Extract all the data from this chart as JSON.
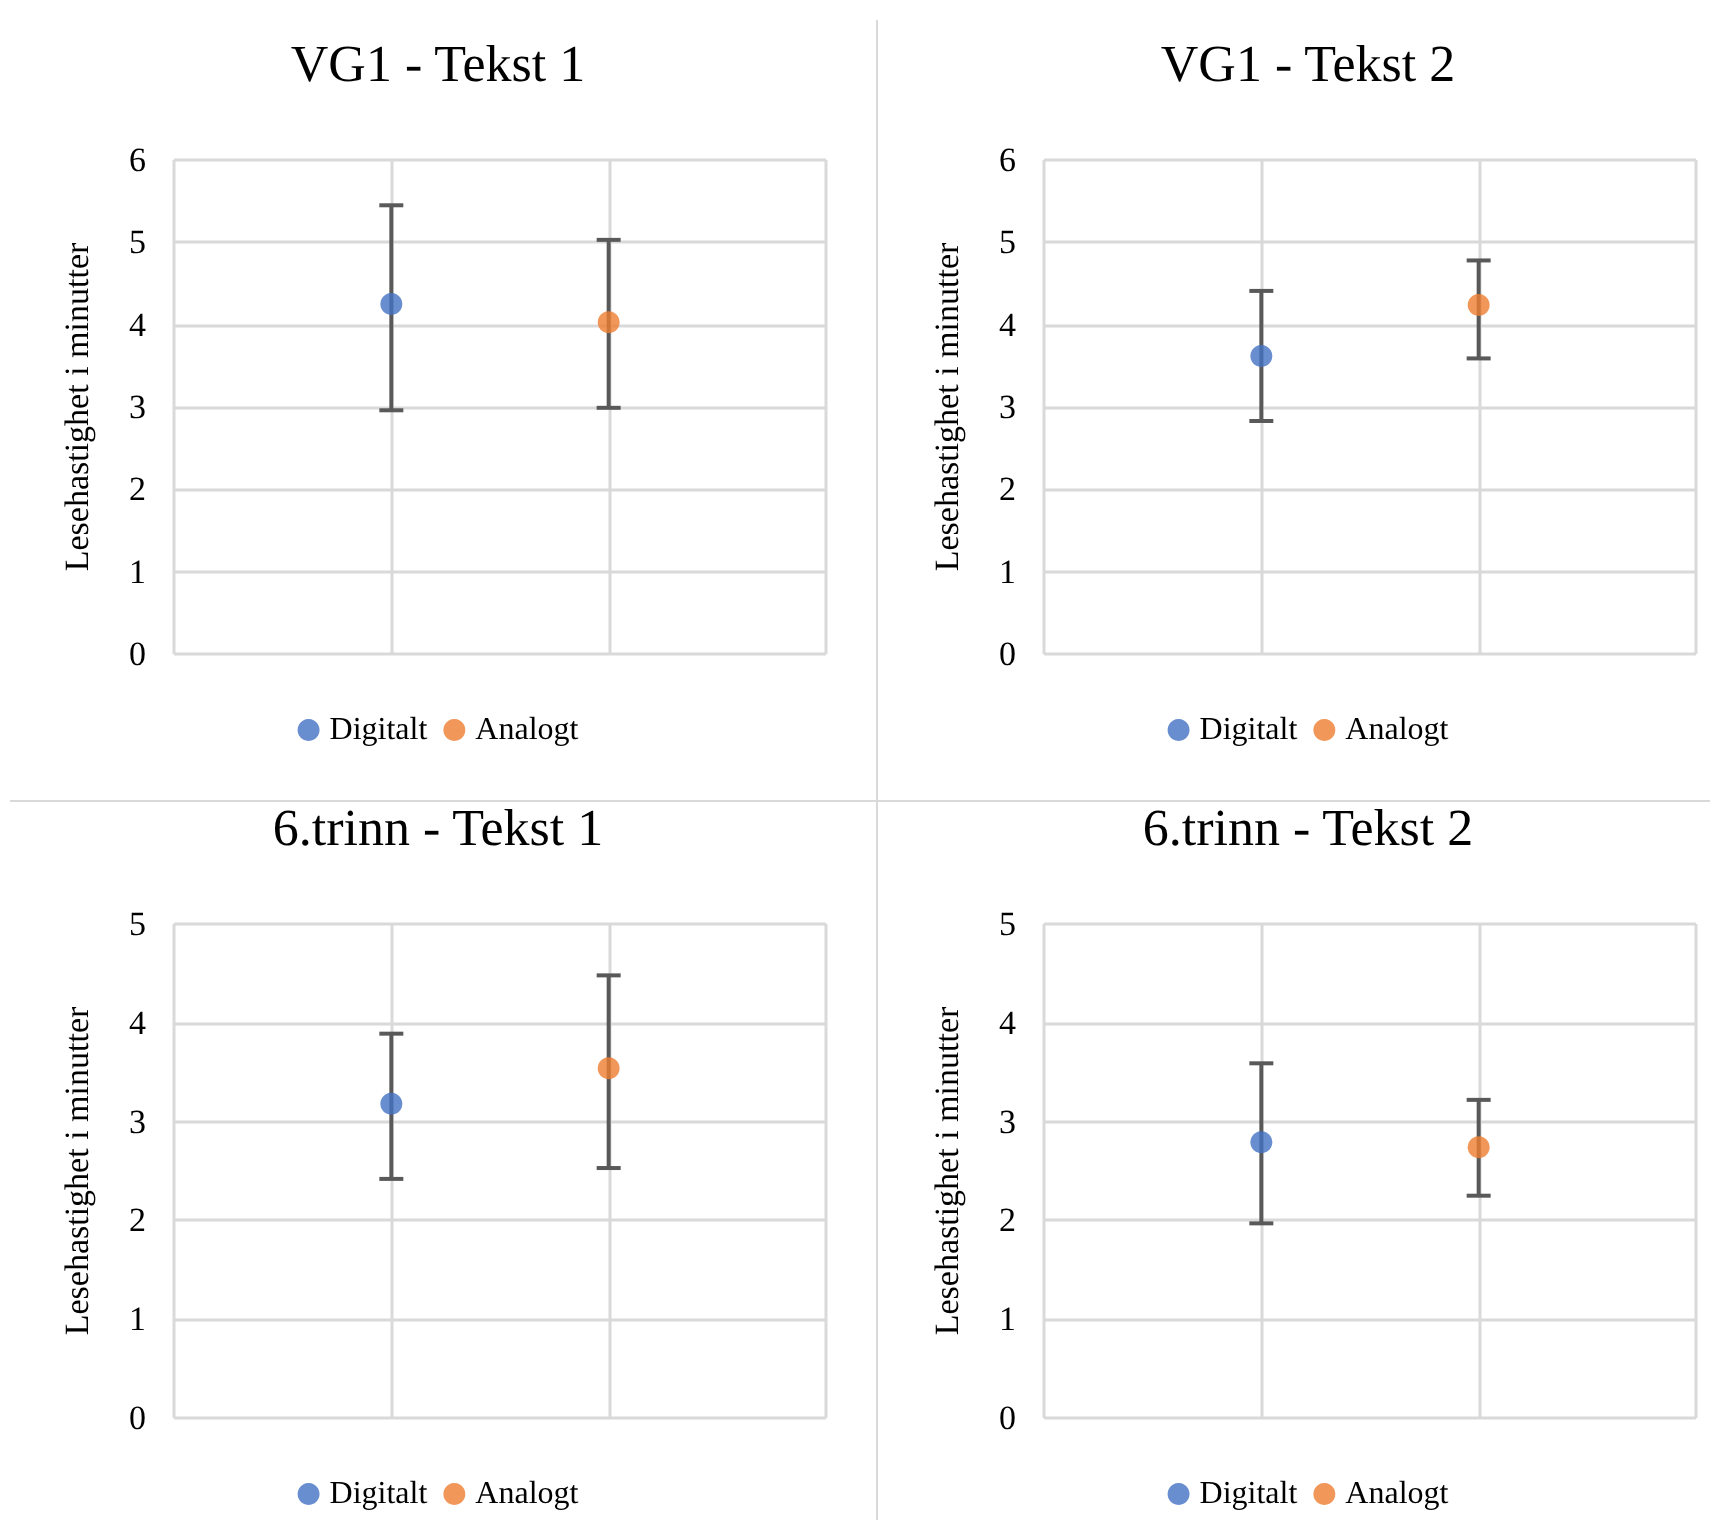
{
  "chart_data": [
    {
      "type": "scatter",
      "title": "VG1 - Tekst 1",
      "ylabel": "Lesehastighet i minutter",
      "categories": [
        null,
        null,
        null,
        null
      ],
      "ylim": [
        0,
        6
      ],
      "yticks": [
        0,
        1,
        2,
        3,
        4,
        5,
        6
      ],
      "grid": true,
      "legend": "bottom",
      "marker": "circle",
      "series": [
        {
          "name": "Digitalt",
          "color": "#4472c4",
          "values": [
            null,
            4.25,
            null,
            null
          ],
          "errors": [
            null,
            [
              2.96,
              5.45
            ],
            null,
            null
          ]
        },
        {
          "name": "Analogt",
          "color": "#ed7d31",
          "values": [
            null,
            null,
            4.03,
            null
          ],
          "errors": [
            null,
            null,
            [
              2.99,
              5.03
            ],
            null
          ]
        }
      ]
    },
    {
      "type": "scatter",
      "title": "VG1 - Tekst 2",
      "ylabel": "Lesehastighet i minutter",
      "categories": [
        null,
        null,
        null,
        null
      ],
      "ylim": [
        0,
        6
      ],
      "yticks": [
        0,
        1,
        2,
        3,
        4,
        5,
        6
      ],
      "grid": true,
      "legend": "bottom",
      "marker": "circle",
      "series": [
        {
          "name": "Digitalt",
          "color": "#4472c4",
          "values": [
            null,
            3.62,
            null,
            null
          ],
          "errors": [
            null,
            [
              2.83,
              4.41
            ],
            null,
            null
          ]
        },
        {
          "name": "Analogt",
          "color": "#ed7d31",
          "values": [
            null,
            null,
            4.24,
            null
          ],
          "errors": [
            null,
            null,
            [
              3.59,
              4.78
            ],
            null
          ]
        }
      ]
    },
    {
      "type": "scatter",
      "title": "6.trinn - Tekst 1",
      "ylabel": "Lesehastighet i minutter",
      "categories": [
        null,
        null,
        null,
        null
      ],
      "ylim": [
        0,
        5
      ],
      "yticks": [
        0,
        1,
        2,
        3,
        4,
        5
      ],
      "grid": true,
      "legend": "bottom",
      "marker": "circle",
      "series": [
        {
          "name": "Digitalt",
          "color": "#4472c4",
          "values": [
            null,
            3.18,
            null,
            null
          ],
          "errors": [
            null,
            [
              2.42,
              3.89
            ],
            null,
            null
          ]
        },
        {
          "name": "Analogt",
          "color": "#ed7d31",
          "values": [
            null,
            null,
            3.54,
            null
          ],
          "errors": [
            null,
            null,
            [
              2.53,
              4.48
            ],
            null
          ]
        }
      ]
    },
    {
      "type": "scatter",
      "title": "6.trinn - Tekst 2",
      "ylabel": "Lesehastighet i minutter",
      "categories": [
        null,
        null,
        null,
        null
      ],
      "ylim": [
        0,
        5
      ],
      "yticks": [
        0,
        1,
        2,
        3,
        4,
        5
      ],
      "grid": true,
      "legend": "bottom",
      "marker": "circle",
      "series": [
        {
          "name": "Digitalt",
          "color": "#4472c4",
          "values": [
            null,
            2.79,
            null,
            null
          ],
          "errors": [
            null,
            [
              1.97,
              3.59
            ],
            null,
            null
          ]
        },
        {
          "name": "Analogt",
          "color": "#ed7d31",
          "values": [
            null,
            null,
            2.74,
            null
          ],
          "errors": [
            null,
            null,
            [
              2.25,
              3.22
            ],
            null
          ]
        }
      ]
    }
  ]
}
